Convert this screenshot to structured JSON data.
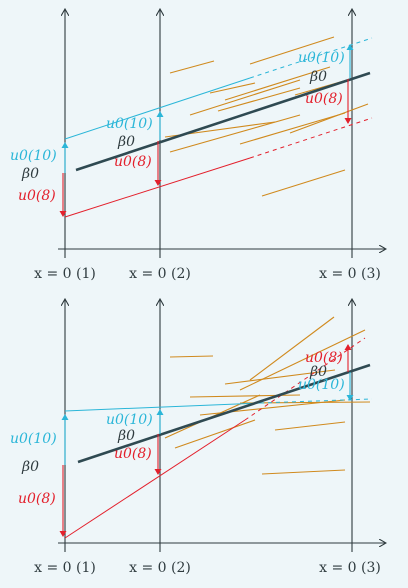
{
  "colors": {
    "background": "#eef6f9",
    "axis": "#2f3b3f",
    "mean_line": "#2f4a52",
    "u10": "#2bb6d8",
    "u8": "#e3202c",
    "student_lines": "#d08a1e"
  },
  "top_panel": {
    "axis_labels": [
      "x = 0 (1)",
      "x = 0 (2)",
      "x = 0 (3)"
    ],
    "beta0_label": "β0",
    "u10_label": "u0(10)",
    "u8_label": "u0(8)"
  },
  "bottom_panel": {
    "axis_labels": [
      "x = 0 (1)",
      "x = 0 (2)",
      "x = 0 (3)"
    ],
    "beta0_label": "β0",
    "u10_label": "u0(10)",
    "u8_label": "u0(8)"
  }
}
